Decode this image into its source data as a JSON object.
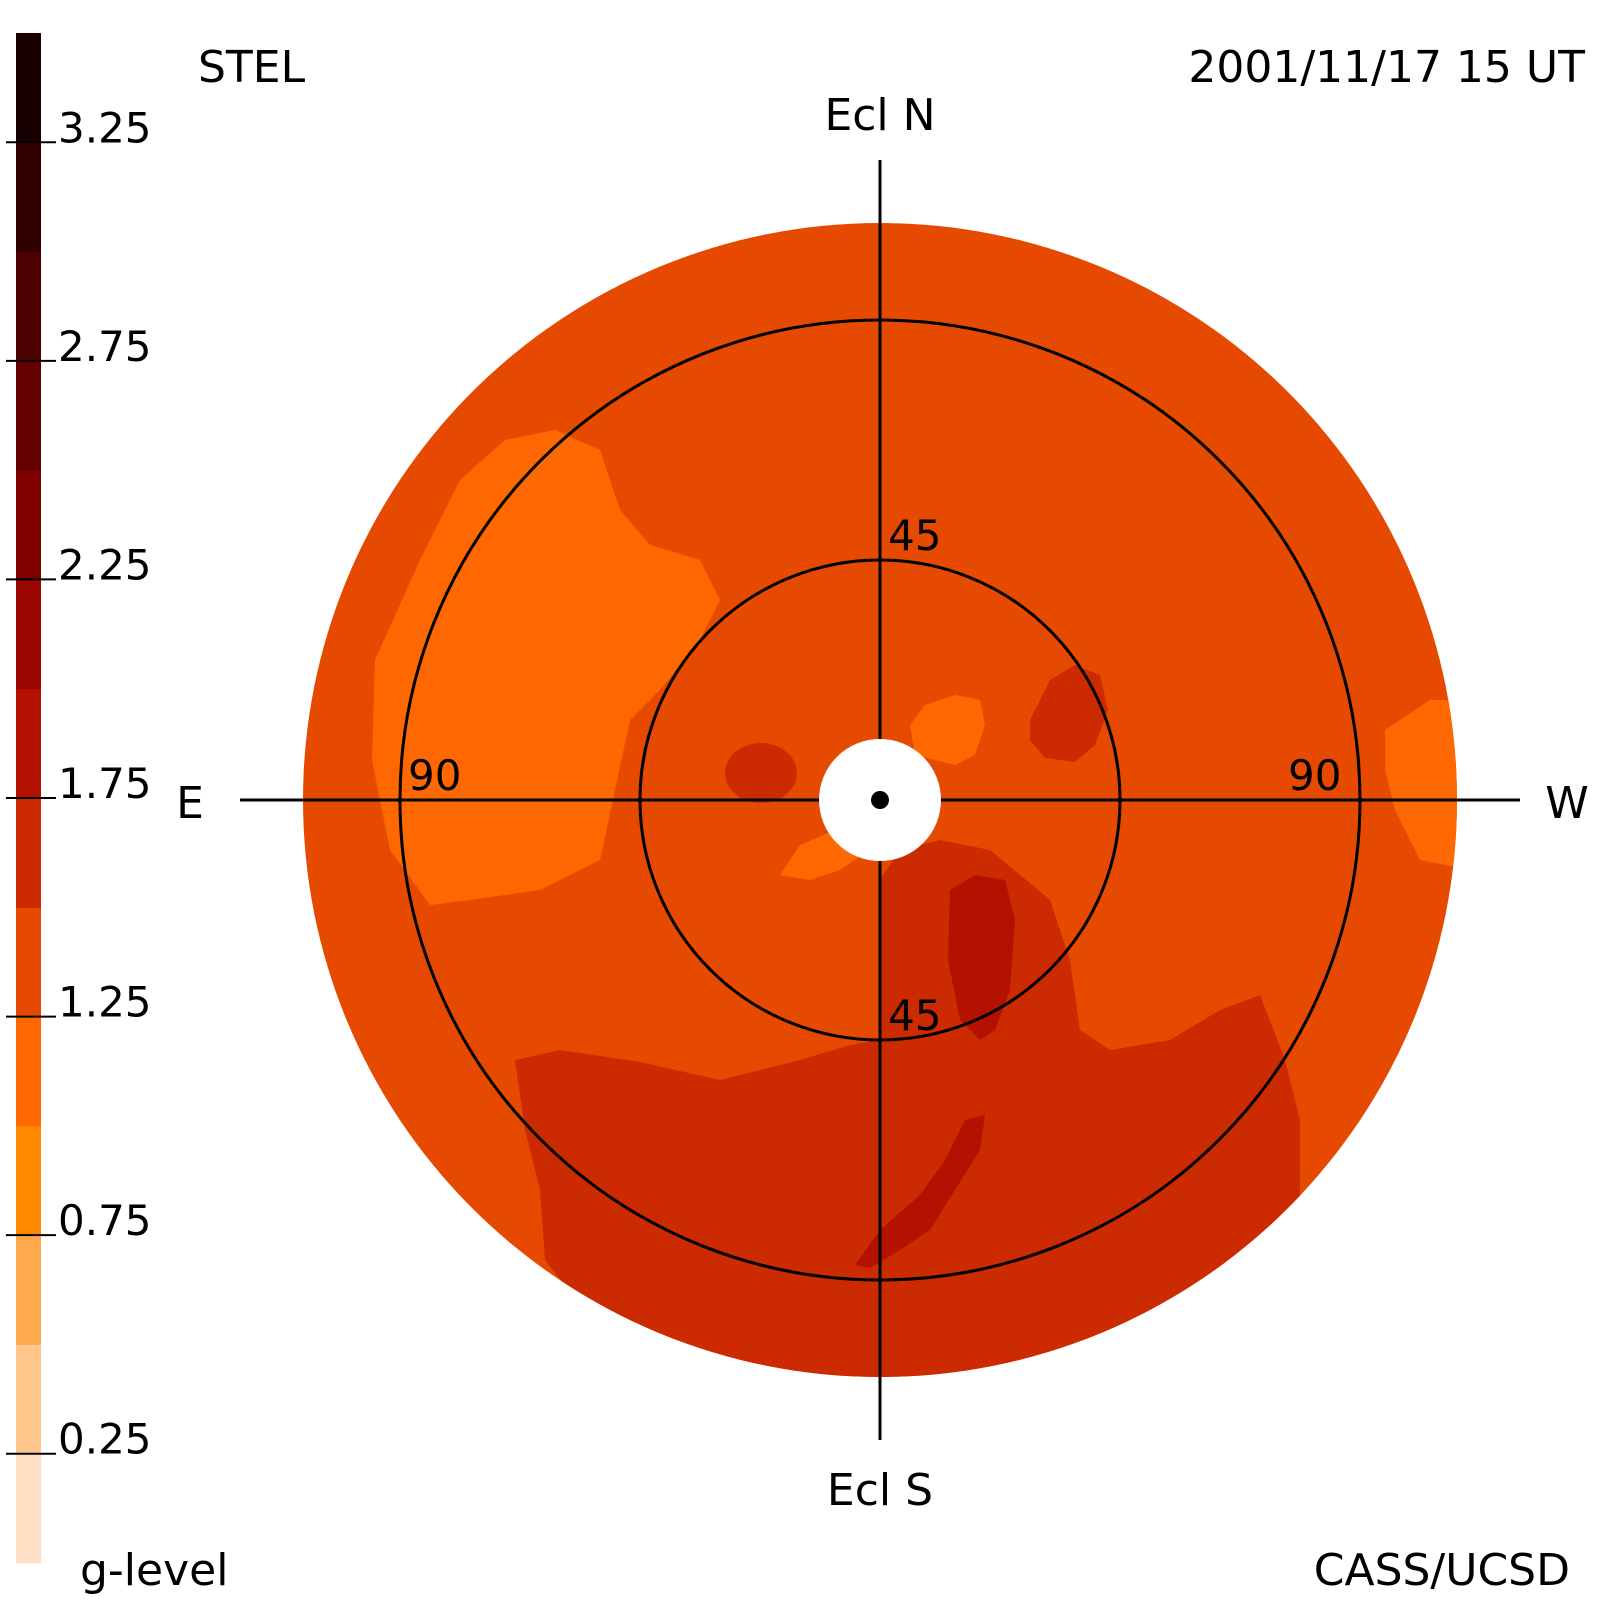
{
  "header": {
    "source": "STEL",
    "timestamp": "2001/11/17 15 UT"
  },
  "footer": {
    "colorbar_label": "g-level",
    "credit": "CASS/UCSD"
  },
  "directions": {
    "north": "Ecl N",
    "south": "Ecl S",
    "east": "E",
    "west": "W"
  },
  "ring_labels": {
    "north_inner": "45",
    "south_inner": "45",
    "east_outer": "90",
    "west_outer": "90"
  },
  "chart_data": {
    "type": "heatmap",
    "projection": "polar sky map (elongation from Sun)",
    "rings_elongation_deg": [
      45,
      90
    ],
    "colorbar": {
      "variable": "g-level",
      "range": [
        0,
        3.5
      ],
      "ticks": [
        {
          "value": 0.25,
          "label": "0.25"
        },
        {
          "value": 0.75,
          "label": "0.75"
        },
        {
          "value": 1.25,
          "label": "1.25"
        },
        {
          "value": 1.75,
          "label": "1.75"
        },
        {
          "value": 2.25,
          "label": "2.25"
        },
        {
          "value": 2.75,
          "label": "2.75"
        },
        {
          "value": 3.25,
          "label": "3.25"
        }
      ],
      "levels": [
        {
          "from": 0.0,
          "to": 0.25,
          "color": "#ffe0c4"
        },
        {
          "from": 0.25,
          "to": 0.5,
          "color": "#ffc68c"
        },
        {
          "from": 0.5,
          "to": 0.75,
          "color": "#ffa84c"
        },
        {
          "from": 0.75,
          "to": 1.0,
          "color": "#ff8a00"
        },
        {
          "from": 1.0,
          "to": 1.25,
          "color": "#ff6800"
        },
        {
          "from": 1.25,
          "to": 1.5,
          "color": "#e64a00"
        },
        {
          "from": 1.5,
          "to": 1.75,
          "color": "#cc2a00"
        },
        {
          "from": 1.75,
          "to": 2.0,
          "color": "#b31200"
        },
        {
          "from": 2.0,
          "to": 2.25,
          "color": "#990600"
        },
        {
          "from": 2.25,
          "to": 2.5,
          "color": "#800000"
        },
        {
          "from": 2.5,
          "to": 2.75,
          "color": "#660000"
        },
        {
          "from": 2.75,
          "to": 3.0,
          "color": "#4d0000"
        },
        {
          "from": 3.0,
          "to": 3.25,
          "color": "#330000"
        },
        {
          "from": 3.25,
          "to": 3.5,
          "color": "#190000"
        }
      ]
    },
    "background_level_color": "#e64a00"
  }
}
